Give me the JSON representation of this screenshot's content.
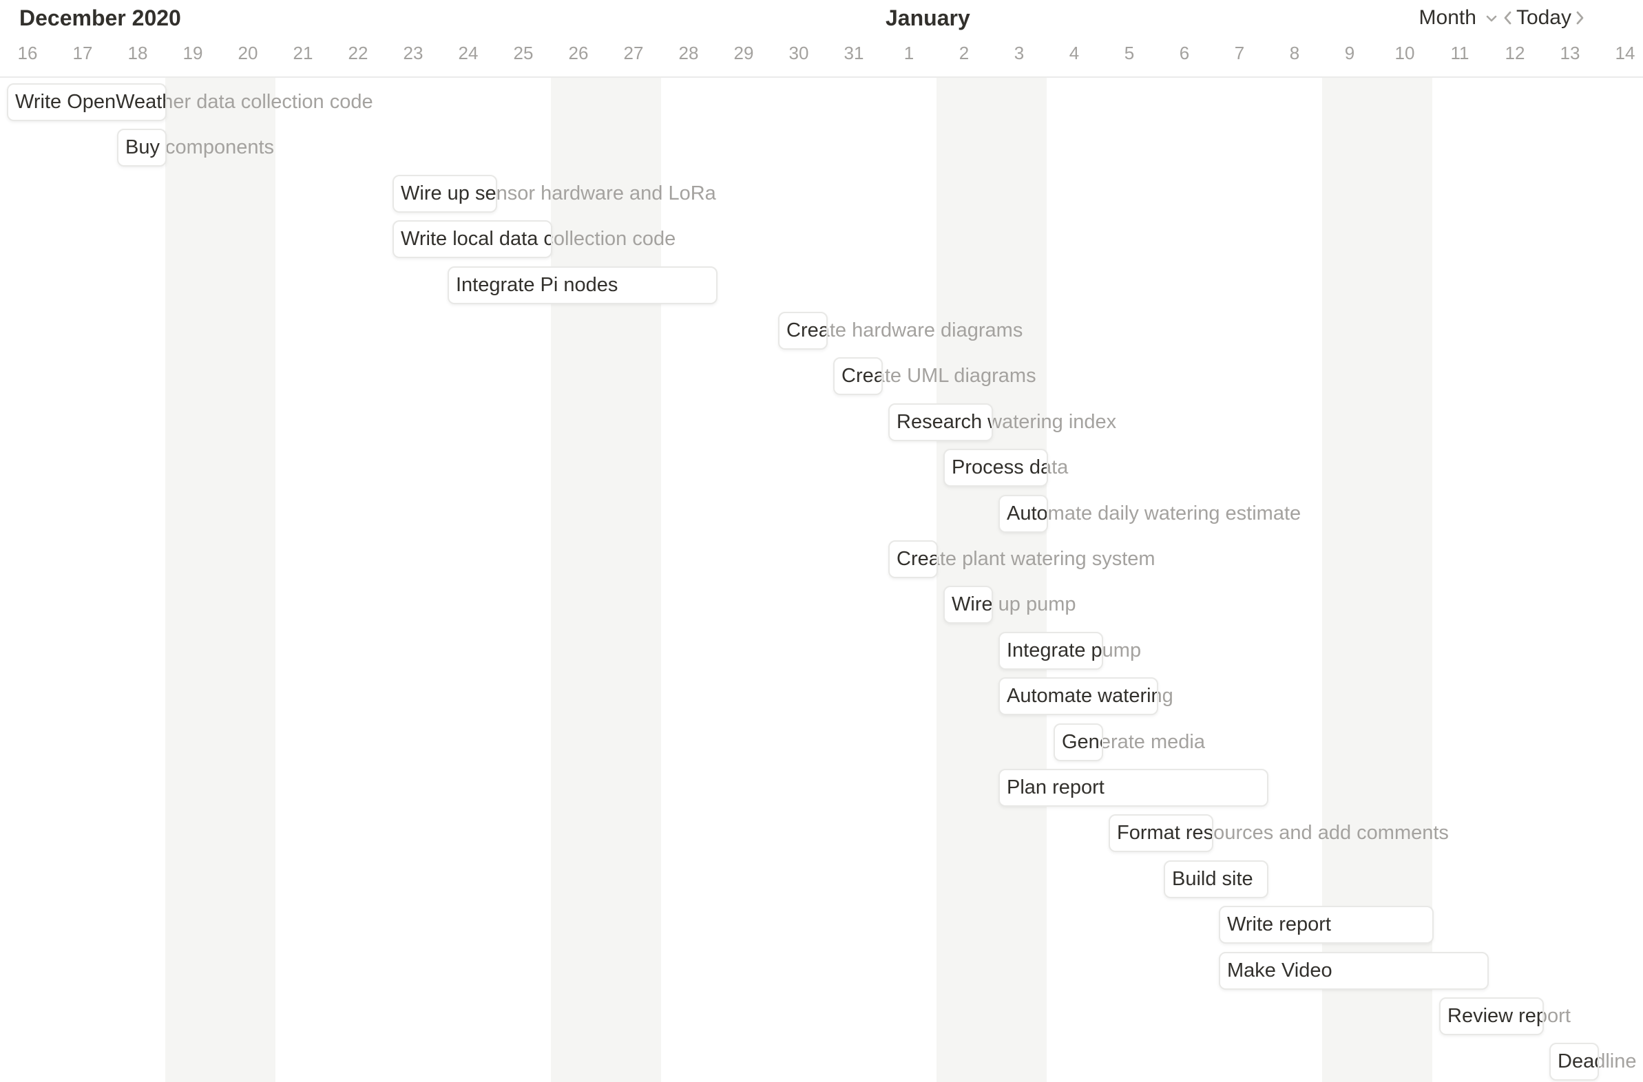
{
  "header": {
    "left_month": "December 2020",
    "right_month": "January",
    "view_selector": "Month",
    "today_label": "Today"
  },
  "icons": {
    "view_dropdown": "chevron-down",
    "prev": "chevron-left",
    "next": "chevron-right"
  },
  "colors": {
    "background": "#ffffff",
    "weekend_stripe": "#f5f5f3",
    "bar_background": "#ffffff",
    "bar_border": "#e8e8e6",
    "bar_text": "#32302c",
    "overflow_text": "#a4a29f",
    "day_label": "#a3a19e",
    "month_label": "#32302c",
    "view_selector_text": "#807e79",
    "today_text": "#33312d",
    "separator": "#ebebea"
  },
  "days": [
    {
      "label": "16"
    },
    {
      "label": "17"
    },
    {
      "label": "18"
    },
    {
      "label": "19",
      "weekend": true
    },
    {
      "label": "20",
      "weekend": true
    },
    {
      "label": "21"
    },
    {
      "label": "22"
    },
    {
      "label": "23"
    },
    {
      "label": "24"
    },
    {
      "label": "25"
    },
    {
      "label": "26",
      "weekend": true
    },
    {
      "label": "27",
      "weekend": true
    },
    {
      "label": "28"
    },
    {
      "label": "29"
    },
    {
      "label": "30"
    },
    {
      "label": "31"
    },
    {
      "label": "1"
    },
    {
      "label": "2",
      "weekend": true
    },
    {
      "label": "3",
      "weekend": true
    },
    {
      "label": "4"
    },
    {
      "label": "5"
    },
    {
      "label": "6"
    },
    {
      "label": "7"
    },
    {
      "label": "8"
    },
    {
      "label": "9",
      "weekend": true
    },
    {
      "label": "10",
      "weekend": true
    },
    {
      "label": "11"
    },
    {
      "label": "12"
    },
    {
      "label": "13"
    },
    {
      "label": "14"
    }
  ],
  "tasks": [
    {
      "title": "Write OpenWeather data collection code",
      "start_day_index": 0,
      "duration_days": 3
    },
    {
      "title": "Buy components",
      "start_day_index": 2,
      "duration_days": 1
    },
    {
      "title": "Wire up sensor hardware and LoRa",
      "start_day_index": 7,
      "duration_days": 2
    },
    {
      "title": "Write local data collection code",
      "start_day_index": 7,
      "duration_days": 3
    },
    {
      "title": "Integrate Pi nodes",
      "start_day_index": 8,
      "duration_days": 5
    },
    {
      "title": "Create hardware diagrams",
      "start_day_index": 14,
      "duration_days": 1
    },
    {
      "title": "Create UML diagrams",
      "start_day_index": 15,
      "duration_days": 1
    },
    {
      "title": "Research watering index",
      "start_day_index": 16,
      "duration_days": 2
    },
    {
      "title": "Process data",
      "start_day_index": 17,
      "duration_days": 2
    },
    {
      "title": "Automate daily watering estimate",
      "start_day_index": 18,
      "duration_days": 1
    },
    {
      "title": "Create plant watering system",
      "start_day_index": 16,
      "duration_days": 1
    },
    {
      "title": "Wire up pump",
      "start_day_index": 17,
      "duration_days": 1
    },
    {
      "title": "Integrate pump",
      "start_day_index": 18,
      "duration_days": 2
    },
    {
      "title": "Automate watering",
      "start_day_index": 18,
      "duration_days": 3
    },
    {
      "title": "Generate media",
      "start_day_index": 19,
      "duration_days": 1
    },
    {
      "title": "Plan report",
      "start_day_index": 18,
      "duration_days": 5
    },
    {
      "title": "Format resources and add comments",
      "start_day_index": 20,
      "duration_days": 2
    },
    {
      "title": "Build site",
      "start_day_index": 21,
      "duration_days": 2
    },
    {
      "title": "Write report",
      "start_day_index": 22,
      "duration_days": 4
    },
    {
      "title": "Make Video",
      "start_day_index": 22,
      "duration_days": 5
    },
    {
      "title": "Review report",
      "start_day_index": 26,
      "duration_days": 2
    },
    {
      "title": "Deadline",
      "start_day_index": 28,
      "duration_days": 1
    }
  ]
}
